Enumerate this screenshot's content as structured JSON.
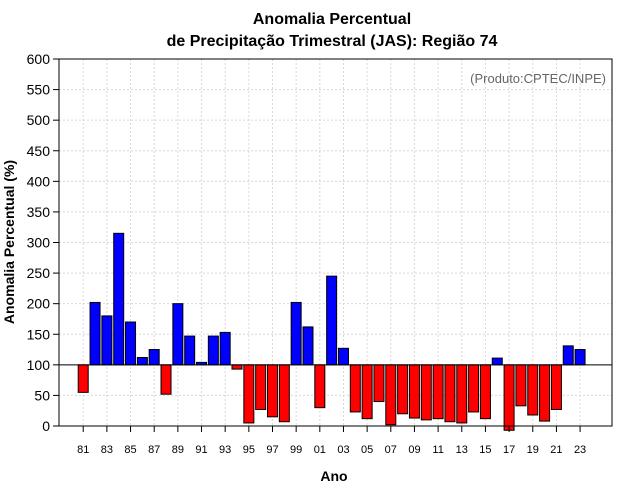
{
  "chart_data": {
    "type": "bar",
    "title_line1": "Anomalia Percentual",
    "title_line2": "de Precipitação Trimestral (JAS): Região 74",
    "xlabel": "Ano",
    "ylabel": "Anomalia Percentual (%)",
    "credit": "(Produto:CPTEC/INPE)",
    "ylim": [
      0,
      600
    ],
    "yticks": [
      0,
      50,
      100,
      150,
      200,
      250,
      300,
      350,
      400,
      450,
      500,
      550,
      600
    ],
    "baseline": 100,
    "grid": true,
    "colors": {
      "above": "#0000ff",
      "below": "#ff0000",
      "outline": "#000000",
      "grid": "#d8d8d8"
    },
    "categories": [
      "81",
      "82",
      "83",
      "84",
      "85",
      "86",
      "87",
      "88",
      "89",
      "90",
      "91",
      "92",
      "93",
      "94",
      "95",
      "96",
      "97",
      "98",
      "99",
      "00",
      "01",
      "02",
      "03",
      "04",
      "05",
      "06",
      "07",
      "08",
      "09",
      "10",
      "11",
      "12",
      "13",
      "14",
      "15",
      "16",
      "17",
      "18",
      "19",
      "20",
      "21",
      "22",
      "23"
    ],
    "tick_labels": [
      "81",
      "83",
      "85",
      "87",
      "89",
      "91",
      "93",
      "95",
      "97",
      "99",
      "01",
      "03",
      "05",
      "07",
      "09",
      "11",
      "13",
      "15",
      "17",
      "19",
      "21",
      "23"
    ],
    "values": [
      55,
      202,
      180,
      315,
      170,
      112,
      125,
      52,
      200,
      147,
      104,
      147,
      153,
      93,
      5,
      27,
      15,
      7,
      202,
      162,
      30,
      245,
      127,
      23,
      12,
      40,
      2,
      20,
      13,
      10,
      12,
      7,
      5,
      23,
      12,
      111,
      -7,
      33,
      18,
      8,
      27,
      131,
      125
    ]
  }
}
